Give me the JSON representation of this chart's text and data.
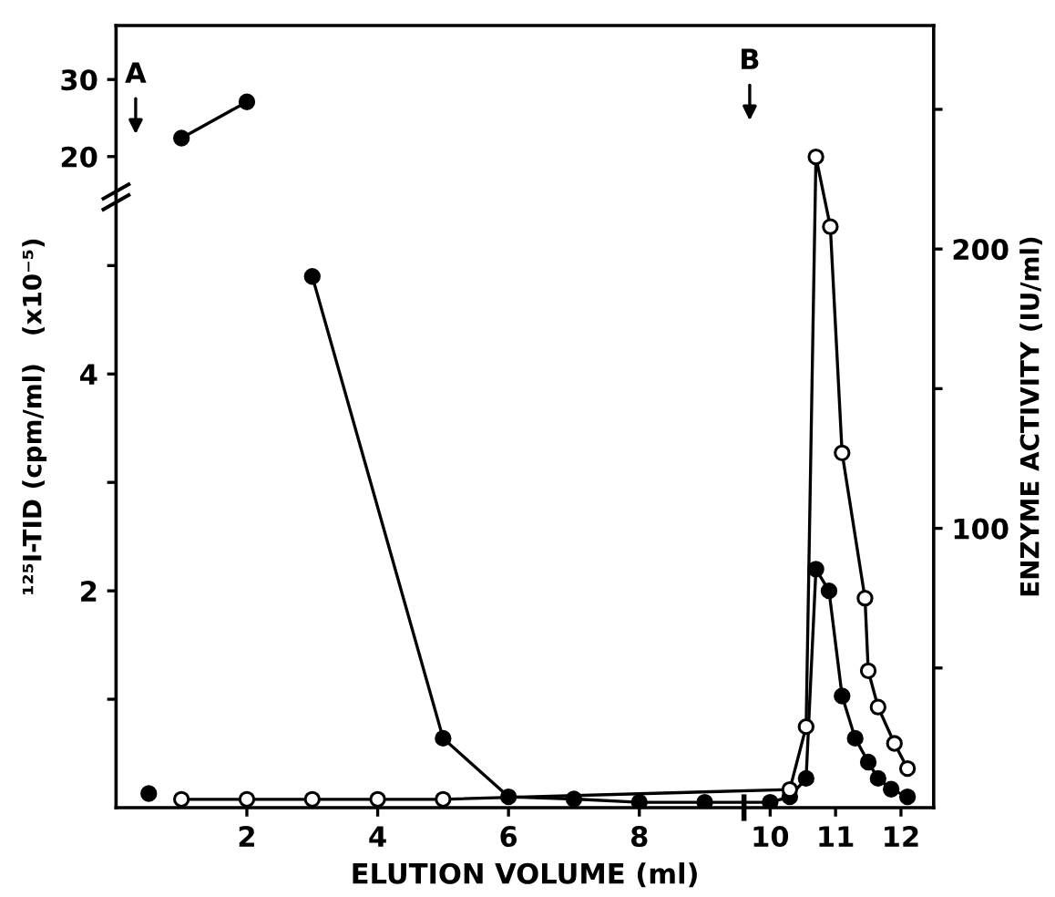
{
  "chart_data": [
    {
      "type": "line",
      "xlim": [
        0,
        12.5
      ],
      "xticks": [
        2,
        4,
        6,
        8,
        10,
        11,
        12
      ],
      "ylim": [
        15,
        37
      ],
      "yticks": [
        20,
        30
      ],
      "tick_labels": "y",
      "series": [
        {
          "color": "#000000",
          "x": [
            1,
            2
          ],
          "values": [
            22.4,
            27.1
          ]
        }
      ],
      "annotations": [
        "A",
        "B"
      ],
      "marker": "circle",
      "line_style": "solid",
      "grid": false
    },
    {
      "type": "line",
      "xlabel": "ELUTION VOLUME (ml)",
      "ylabel": "¹²⁵I-TID (cpm/ml)   (x10⁻⁵)",
      "xlim": [
        0,
        12.5
      ],
      "xticks": [
        2,
        4,
        6,
        8,
        10,
        11,
        12
      ],
      "ylim": [
        0,
        5.65
      ],
      "yticks": [
        {
          "value": 1,
          "label": null
        },
        2,
        {
          "value": 3,
          "label": null
        },
        4,
        {
          "value": 5,
          "label": null
        }
      ],
      "series": [
        {
          "color": "#000000",
          "x": [
            0.5,
            1,
            2,
            3,
            5,
            6,
            7,
            8,
            9,
            10,
            10.3,
            10.55,
            10.7,
            10.9,
            11.1,
            11.3,
            11.5,
            11.65,
            11.85,
            12.1
          ],
          "values": [
            0.13,
            null,
            null,
            4.9,
            0.64,
            0.1,
            0.08,
            0.05,
            0.05,
            0.05,
            0.1,
            0.27,
            2.2,
            2.0,
            1.03,
            0.64,
            0.42,
            0.27,
            0.17,
            0.1
          ]
        }
      ],
      "marker": "circle",
      "line_style": "solid",
      "grid": false
    },
    {
      "type": "line",
      "y2label": "ENZYME ACTIVITY (IU/ml)",
      "xlim": [
        0,
        12.5
      ],
      "xticks": [
        2,
        4,
        6,
        8,
        10,
        11,
        12
      ],
      "tick_labels": "y",
      "y2lim": [
        0,
        280
      ],
      "y2ticks": [
        {
          "value": 50,
          "label": null
        },
        100,
        {
          "value": 150,
          "label": null
        },
        200,
        {
          "value": 250,
          "label": null
        }
      ],
      "series": [
        {
          "color": "#ffffff",
          "axis": "y2",
          "x": [
            1,
            2,
            3,
            4,
            5,
            10.3,
            10.55,
            10.7,
            10.92,
            11.1,
            11.45,
            11.5,
            11.65,
            11.9,
            12.1
          ],
          "values": [
            3,
            3,
            3,
            3,
            3,
            6.5,
            29,
            233,
            208,
            127,
            75,
            49,
            36,
            23,
            14
          ]
        }
      ],
      "marker": "circle",
      "line_style": "solid",
      "grid": false
    }
  ]
}
